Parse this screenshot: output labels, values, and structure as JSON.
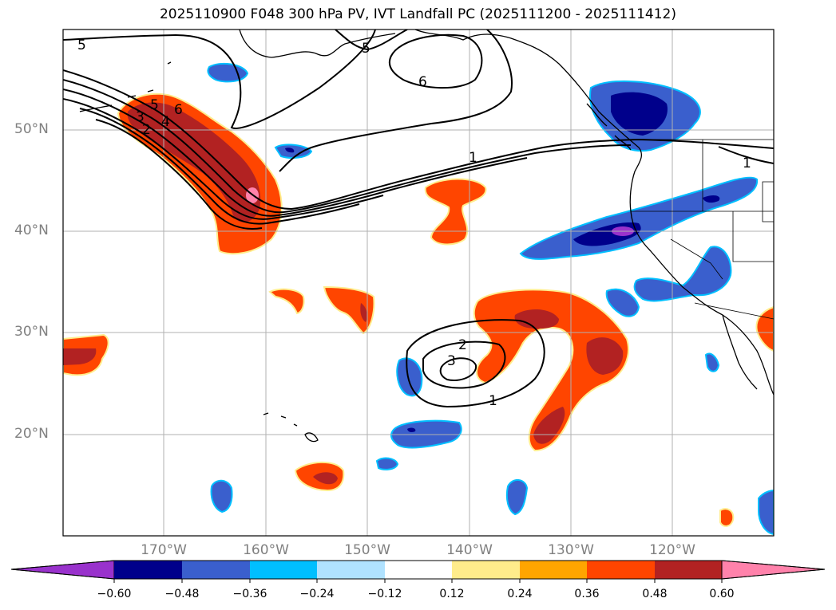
{
  "title": "2025110900 F048 300 hPa PV, IVT Landfall PC (2025111200 - 2025111412)",
  "lat_labels": [
    "50°N",
    "40°N",
    "30°N",
    "20°N"
  ],
  "lon_labels": [
    "170°W",
    "160°W",
    "150°W",
    "140°W",
    "130°W",
    "120°W"
  ],
  "colorbar": {
    "ticks": [
      "−0.60",
      "−0.48",
      "−0.36",
      "−0.24",
      "−0.12",
      "0.12",
      "0.24",
      "0.36",
      "0.48",
      "0.60"
    ],
    "colors": [
      "#9932cc",
      "#00008b",
      "#3a5fcd",
      "#00bfff",
      "#b0e2ff",
      "#ffffff",
      "#ffec8b",
      "#ffa500",
      "#ff4500",
      "#b22222",
      "#ff82ab"
    ]
  },
  "contour_labels": {
    "c5_west": "5",
    "c5_north": "5",
    "c6": "6",
    "c1_mid": "1",
    "c1_east": "1",
    "c3_left": "3",
    "c2_left": "2",
    "c5_band": "5",
    "c4_band": "4",
    "c6_band": "6",
    "cyc_2": "2",
    "cyc_3": "3",
    "cyc_1": "1"
  },
  "map": {
    "extent": {
      "lon_min": -180,
      "lon_max": -110,
      "lat_min": 10,
      "lat_max": 60
    },
    "field": "300 hPa PV",
    "overlay": "IVT Landfall PC",
    "gridlines": true
  }
}
